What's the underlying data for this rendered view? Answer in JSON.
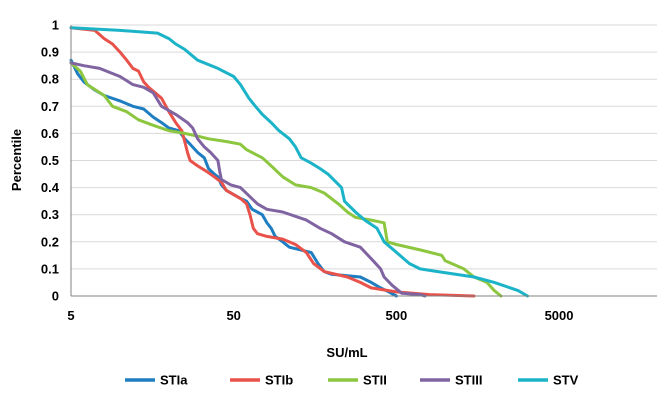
{
  "chart_data": {
    "type": "line",
    "title": "",
    "xlabel": "SU/mL",
    "ylabel": "Percentile",
    "xscale": "log",
    "xlim": [
      5,
      20000
    ],
    "ylim": [
      0,
      1
    ],
    "grid": "horizontal",
    "legend_position": "bottom",
    "x_ticks": [
      {
        "value": 5,
        "label": "5"
      },
      {
        "value": 50,
        "label": "50"
      },
      {
        "value": 500,
        "label": "500"
      },
      {
        "value": 5000,
        "label": "5000"
      }
    ],
    "y_ticks": [
      {
        "value": 0,
        "label": "0"
      },
      {
        "value": 0.1,
        "label": "0.1"
      },
      {
        "value": 0.2,
        "label": "0.2"
      },
      {
        "value": 0.3,
        "label": "0.3"
      },
      {
        "value": 0.4,
        "label": "0.4"
      },
      {
        "value": 0.5,
        "label": "0.5"
      },
      {
        "value": 0.6,
        "label": "0.6"
      },
      {
        "value": 0.7,
        "label": "0.7"
      },
      {
        "value": 0.8,
        "label": "0.8"
      },
      {
        "value": 0.9,
        "label": "0.9"
      },
      {
        "value": 1,
        "label": "1"
      }
    ],
    "series": [
      {
        "name": "STIa",
        "color": "#1f7ec1",
        "points": [
          [
            5,
            0.87
          ],
          [
            5.5,
            0.82
          ],
          [
            6,
            0.79
          ],
          [
            7,
            0.76
          ],
          [
            8,
            0.74
          ],
          [
            10,
            0.72
          ],
          [
            12,
            0.7
          ],
          [
            14,
            0.69
          ],
          [
            16,
            0.66
          ],
          [
            18,
            0.64
          ],
          [
            20,
            0.62
          ],
          [
            23,
            0.61
          ],
          [
            25,
            0.58
          ],
          [
            27,
            0.56
          ],
          [
            30,
            0.53
          ],
          [
            33,
            0.51
          ],
          [
            35,
            0.47
          ],
          [
            38,
            0.45
          ],
          [
            40,
            0.44
          ],
          [
            42,
            0.41
          ],
          [
            45,
            0.39
          ],
          [
            55,
            0.36
          ],
          [
            60,
            0.35
          ],
          [
            65,
            0.32
          ],
          [
            75,
            0.3
          ],
          [
            80,
            0.27
          ],
          [
            85,
            0.25
          ],
          [
            90,
            0.22
          ],
          [
            100,
            0.2
          ],
          [
            110,
            0.18
          ],
          [
            150,
            0.16
          ],
          [
            165,
            0.12
          ],
          [
            180,
            0.09
          ],
          [
            200,
            0.08
          ],
          [
            300,
            0.07
          ],
          [
            350,
            0.05
          ],
          [
            400,
            0.03
          ],
          [
            450,
            0.015
          ],
          [
            500,
            0
          ]
        ]
      },
      {
        "name": "STIb",
        "color": "#e8524a",
        "points": [
          [
            5,
            0.99
          ],
          [
            7,
            0.98
          ],
          [
            8,
            0.95
          ],
          [
            9,
            0.93
          ],
          [
            10,
            0.9
          ],
          [
            11,
            0.87
          ],
          [
            12,
            0.84
          ],
          [
            13,
            0.83
          ],
          [
            14,
            0.79
          ],
          [
            15,
            0.77
          ],
          [
            18,
            0.73
          ],
          [
            20,
            0.68
          ],
          [
            22,
            0.64
          ],
          [
            24,
            0.61
          ],
          [
            25,
            0.57
          ],
          [
            26,
            0.53
          ],
          [
            27,
            0.5
          ],
          [
            30,
            0.48
          ],
          [
            34,
            0.46
          ],
          [
            38,
            0.44
          ],
          [
            42,
            0.42
          ],
          [
            45,
            0.39
          ],
          [
            55,
            0.36
          ],
          [
            60,
            0.34
          ],
          [
            63,
            0.3
          ],
          [
            66,
            0.25
          ],
          [
            70,
            0.23
          ],
          [
            80,
            0.22
          ],
          [
            100,
            0.21
          ],
          [
            120,
            0.19
          ],
          [
            140,
            0.16
          ],
          [
            155,
            0.12
          ],
          [
            180,
            0.09
          ],
          [
            250,
            0.07
          ],
          [
            300,
            0.05
          ],
          [
            350,
            0.03
          ],
          [
            500,
            0.015
          ],
          [
            800,
            0.005
          ],
          [
            1500,
            0
          ]
        ]
      },
      {
        "name": "STII",
        "color": "#8dc63f",
        "points": [
          [
            5,
            0.86
          ],
          [
            5.7,
            0.83
          ],
          [
            6.3,
            0.78
          ],
          [
            8,
            0.74
          ],
          [
            9,
            0.7
          ],
          [
            11,
            0.68
          ],
          [
            13,
            0.65
          ],
          [
            16,
            0.63
          ],
          [
            20,
            0.61
          ],
          [
            25,
            0.6
          ],
          [
            30,
            0.59
          ],
          [
            35,
            0.58
          ],
          [
            45,
            0.57
          ],
          [
            55,
            0.56
          ],
          [
            60,
            0.54
          ],
          [
            75,
            0.51
          ],
          [
            85,
            0.48
          ],
          [
            100,
            0.44
          ],
          [
            120,
            0.41
          ],
          [
            150,
            0.4
          ],
          [
            180,
            0.38
          ],
          [
            220,
            0.34
          ],
          [
            250,
            0.31
          ],
          [
            280,
            0.29
          ],
          [
            350,
            0.28
          ],
          [
            420,
            0.27
          ],
          [
            440,
            0.2
          ],
          [
            500,
            0.19
          ],
          [
            700,
            0.17
          ],
          [
            950,
            0.15
          ],
          [
            1000,
            0.13
          ],
          [
            1300,
            0.1
          ],
          [
            1500,
            0.07
          ],
          [
            1800,
            0.05
          ],
          [
            2000,
            0.02
          ],
          [
            2200,
            0
          ]
        ]
      },
      {
        "name": "STIII",
        "color": "#8064a2",
        "points": [
          [
            5,
            0.86
          ],
          [
            6,
            0.85
          ],
          [
            7.5,
            0.84
          ],
          [
            10,
            0.81
          ],
          [
            12,
            0.78
          ],
          [
            14,
            0.77
          ],
          [
            16,
            0.75
          ],
          [
            18,
            0.7
          ],
          [
            22,
            0.67
          ],
          [
            26,
            0.64
          ],
          [
            28,
            0.62
          ],
          [
            30,
            0.58
          ],
          [
            33,
            0.55
          ],
          [
            36,
            0.53
          ],
          [
            40,
            0.5
          ],
          [
            41,
            0.46
          ],
          [
            42,
            0.43
          ],
          [
            48,
            0.41
          ],
          [
            55,
            0.4
          ],
          [
            62,
            0.37
          ],
          [
            70,
            0.34
          ],
          [
            80,
            0.32
          ],
          [
            100,
            0.31
          ],
          [
            140,
            0.28
          ],
          [
            170,
            0.25
          ],
          [
            200,
            0.23
          ],
          [
            240,
            0.2
          ],
          [
            300,
            0.18
          ],
          [
            360,
            0.13
          ],
          [
            400,
            0.1
          ],
          [
            420,
            0.07
          ],
          [
            470,
            0.04
          ],
          [
            540,
            0.01
          ],
          [
            700,
            0.005
          ],
          [
            750,
            0
          ]
        ]
      },
      {
        "name": "STV",
        "color": "#1bb3c8",
        "points": [
          [
            5,
            0.99
          ],
          [
            10,
            0.98
          ],
          [
            17,
            0.97
          ],
          [
            20,
            0.95
          ],
          [
            22,
            0.93
          ],
          [
            25,
            0.91
          ],
          [
            30,
            0.87
          ],
          [
            40,
            0.84
          ],
          [
            50,
            0.81
          ],
          [
            55,
            0.78
          ],
          [
            62,
            0.73
          ],
          [
            68,
            0.7
          ],
          [
            75,
            0.67
          ],
          [
            85,
            0.64
          ],
          [
            95,
            0.61
          ],
          [
            110,
            0.58
          ],
          [
            120,
            0.55
          ],
          [
            130,
            0.51
          ],
          [
            150,
            0.49
          ],
          [
            170,
            0.47
          ],
          [
            190,
            0.45
          ],
          [
            230,
            0.4
          ],
          [
            240,
            0.35
          ],
          [
            280,
            0.31
          ],
          [
            320,
            0.28
          ],
          [
            380,
            0.25
          ],
          [
            420,
            0.2
          ],
          [
            550,
            0.14
          ],
          [
            600,
            0.12
          ],
          [
            700,
            0.1
          ],
          [
            900,
            0.09
          ],
          [
            1500,
            0.07
          ],
          [
            2000,
            0.05
          ],
          [
            2800,
            0.02
          ],
          [
            3200,
            0
          ]
        ]
      }
    ]
  }
}
